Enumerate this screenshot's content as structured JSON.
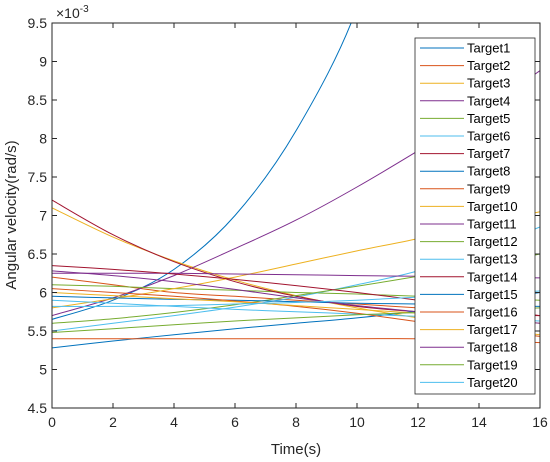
{
  "chart_data": {
    "type": "line",
    "title": "",
    "xlabel": "Time(s)",
    "ylabel": "Angular velocity(rad/s)",
    "y_exponent_label": "×10",
    "y_exponent_power": "-3",
    "xlim": [
      0,
      16
    ],
    "ylim": [
      0.0045,
      0.0095
    ],
    "xticks": [
      "0",
      "2",
      "4",
      "6",
      "8",
      "10",
      "12",
      "14",
      "16"
    ],
    "yticks": [
      "4.5",
      "5",
      "5.5",
      "6",
      "6.5",
      "7",
      "7.5",
      "8",
      "8.5",
      "9",
      "9.5"
    ],
    "x_tick_values": [
      0,
      2,
      4,
      6,
      8,
      10,
      12,
      14,
      16
    ],
    "y_tick_values": [
      0.0045,
      0.005,
      0.0055,
      0.006,
      0.0065,
      0.007,
      0.0075,
      0.008,
      0.0085,
      0.009,
      0.0095
    ],
    "grid": false,
    "legend_position": "top-right",
    "x": [
      0,
      2,
      4,
      6,
      8,
      10,
      12,
      14,
      16
    ],
    "series": [
      {
        "name": "Target1",
        "color": "#0072BD",
        "values": [
          0.00565,
          0.0059,
          0.0063,
          0.007,
          0.0081,
          0.0097,
          null,
          null,
          null
        ]
      },
      {
        "name": "Target2",
        "color": "#D95319",
        "values": [
          0.0062,
          0.0061,
          0.006,
          0.00595,
          0.0059,
          0.00585,
          0.0058,
          0.00575,
          0.0057
        ]
      },
      {
        "name": "Target3",
        "color": "#EDB120",
        "values": [
          0.0071,
          0.00672,
          0.00641,
          0.00616,
          0.00596,
          0.0058,
          0.00567,
          0.00555,
          0.00545
        ]
      },
      {
        "name": "Target4",
        "color": "#7E2F8E",
        "values": [
          0.0057,
          0.00593,
          0.00622,
          0.00657,
          0.00694,
          0.00737,
          0.00784,
          0.00833,
          0.00888
        ]
      },
      {
        "name": "Target5",
        "color": "#77AC30",
        "values": [
          0.0061,
          0.00608,
          0.00605,
          0.00603,
          0.006,
          0.00598,
          0.00595,
          0.00593,
          0.0059
        ]
      },
      {
        "name": "Target6",
        "color": "#4DBEEE",
        "values": [
          0.0055,
          0.0056,
          0.0057,
          0.00581,
          0.00594,
          0.0061,
          0.00628,
          0.00654,
          0.00685
        ]
      },
      {
        "name": "Target7",
        "color": "#A2142F",
        "values": [
          0.0072,
          0.00675,
          0.0064,
          0.00614,
          0.00595,
          0.00582,
          0.00575,
          0.00571,
          0.0057
        ]
      },
      {
        "name": "Target8",
        "color": "#0072BD",
        "values": [
          0.00528,
          0.00537,
          0.00545,
          0.00553,
          0.0056,
          0.00567,
          0.00576,
          0.00588,
          0.006
        ]
      },
      {
        "name": "Target9",
        "color": "#D95319",
        "values": [
          0.0054,
          0.0054,
          0.0054,
          0.0054,
          0.0054,
          0.0054,
          0.0054,
          0.00538,
          0.00535
        ]
      },
      {
        "name": "Target10",
        "color": "#EDB120",
        "values": [
          0.0058,
          0.00592,
          0.00605,
          0.0062,
          0.00637,
          0.00654,
          0.0067,
          0.00688,
          0.00705
        ]
      },
      {
        "name": "Target11",
        "color": "#7E2F8E",
        "values": [
          0.00625,
          0.00625,
          0.00625,
          0.00624,
          0.00623,
          0.00622,
          0.00621,
          0.0062,
          0.00619
        ]
      },
      {
        "name": "Target12",
        "color": "#77AC30",
        "values": [
          0.0056,
          0.00566,
          0.00574,
          0.00584,
          0.00596,
          0.00608,
          0.00621,
          0.00634,
          0.0065
        ]
      },
      {
        "name": "Target13",
        "color": "#4DBEEE",
        "values": [
          0.0059,
          0.00586,
          0.00582,
          0.00578,
          0.00575,
          0.00572,
          0.00569,
          0.00566,
          0.00563
        ]
      },
      {
        "name": "Target14",
        "color": "#A2142F",
        "values": [
          0.00635,
          0.0063,
          0.00624,
          0.00617,
          0.00609,
          0.006,
          0.0059,
          0.0058,
          0.0057
        ]
      },
      {
        "name": "Target15",
        "color": "#0072BD",
        "values": [
          0.00595,
          0.00593,
          0.00591,
          0.0059,
          0.00588,
          0.00586,
          0.00585,
          0.00583,
          0.00582
        ]
      },
      {
        "name": "Target16",
        "color": "#D95319",
        "values": [
          0.00605,
          0.006,
          0.00595,
          0.00589,
          0.00582,
          0.00573,
          0.00562,
          0.00552,
          0.00543
        ]
      },
      {
        "name": "Target17",
        "color": "#EDB120",
        "values": [
          0.006,
          0.00596,
          0.00592,
          0.00588,
          0.00583,
          0.00578,
          0.00573,
          0.00567,
          0.0056
        ]
      },
      {
        "name": "Target18",
        "color": "#7E2F8E",
        "values": [
          0.00628,
          0.00622,
          0.00614,
          0.00604,
          0.00593,
          0.00583,
          0.00575,
          0.00567,
          0.0056
        ]
      },
      {
        "name": "Target19",
        "color": "#77AC30",
        "values": [
          0.00548,
          0.00553,
          0.00558,
          0.00563,
          0.00567,
          0.00571,
          0.00574,
          0.00577,
          0.0058
        ]
      },
      {
        "name": "Target20",
        "color": "#4DBEEE",
        "values": [
          0.00582,
          0.00582,
          0.00583,
          0.00585,
          0.00587,
          0.0059,
          0.00594,
          0.00598,
          0.00602
        ]
      }
    ]
  }
}
